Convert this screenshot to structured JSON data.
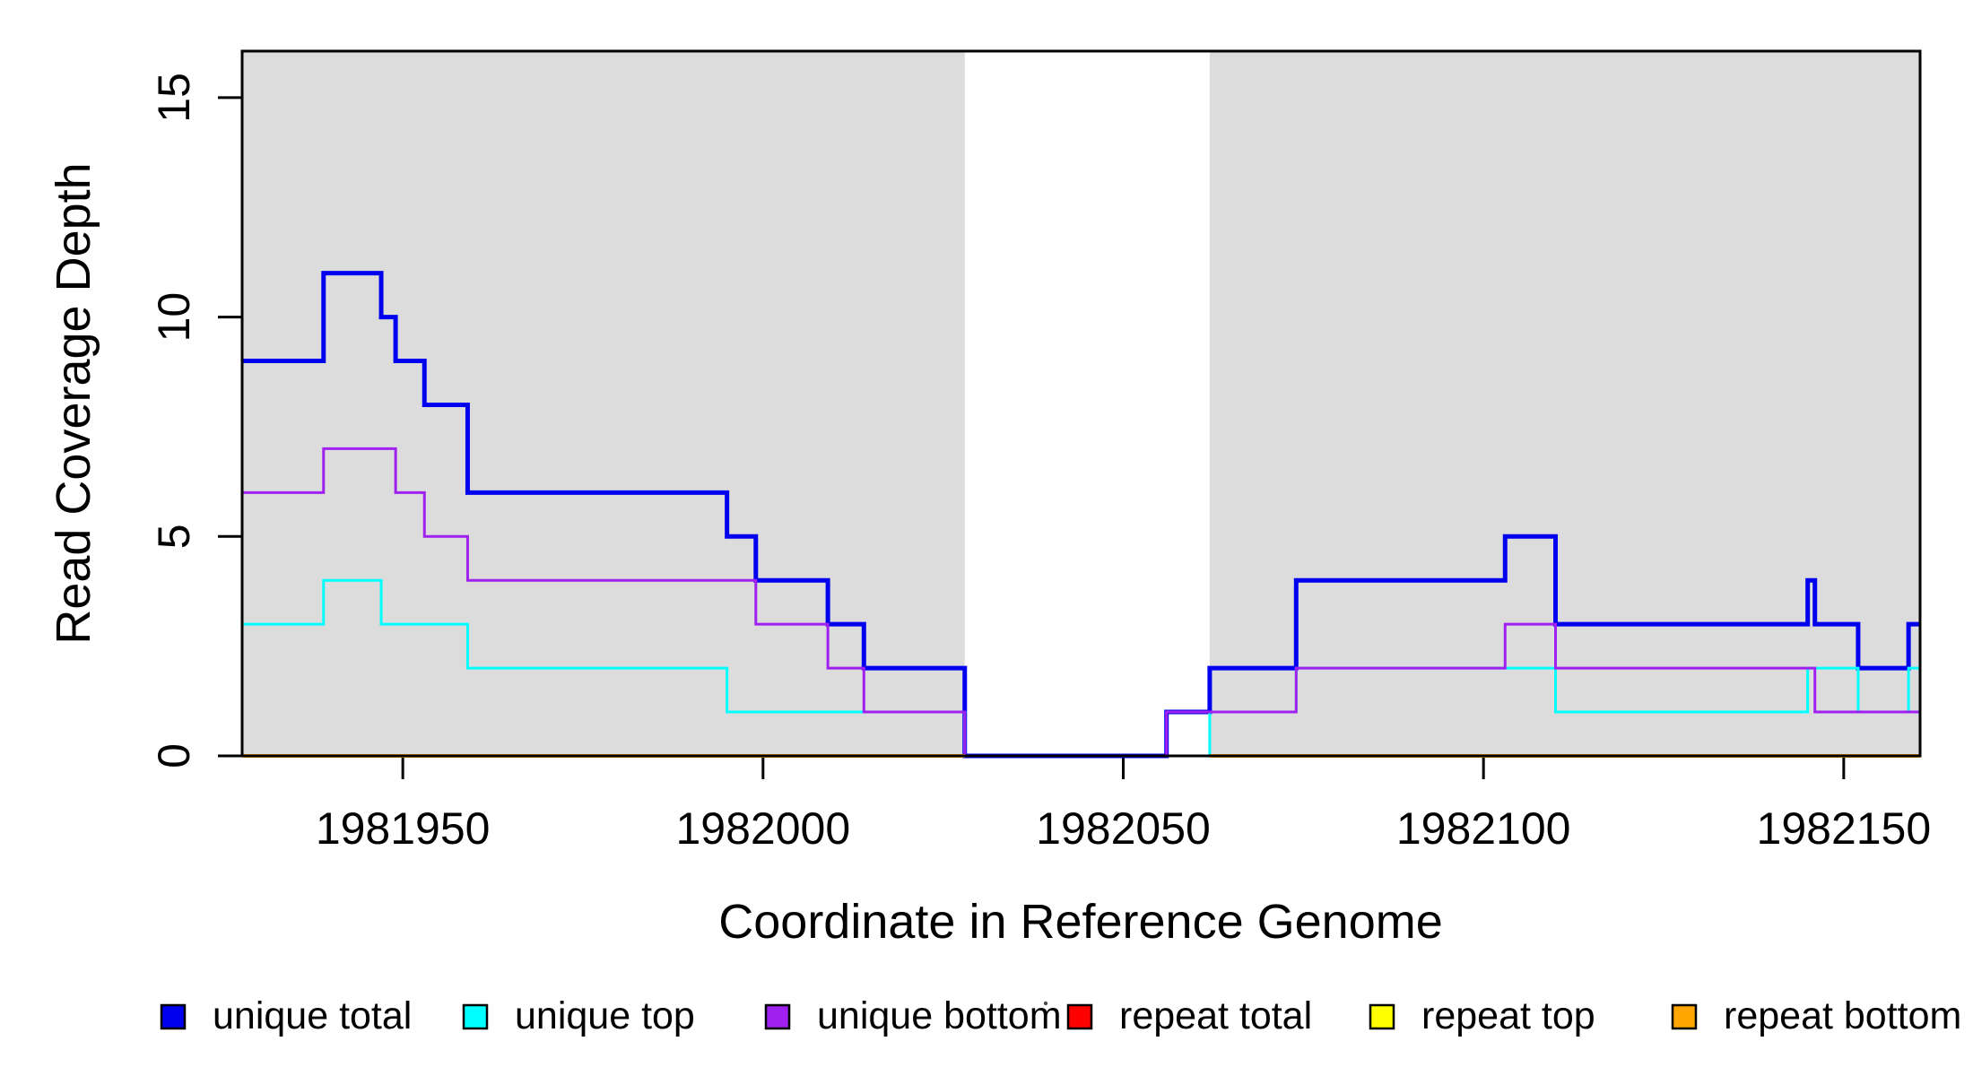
{
  "chart_data": {
    "type": "line",
    "subtype": "step-coverage",
    "title": "",
    "xlabel": "Coordinate in Reference Genome",
    "ylabel": "Read Coverage Depth",
    "xlim": [
      1981927.7,
      1982160.6
    ],
    "ylim": [
      0,
      16.06
    ],
    "xticks": [
      1981950,
      1982000,
      1982050,
      1982100,
      1982150
    ],
    "yticks": [
      0,
      5,
      10,
      15
    ],
    "grid": false,
    "shaded_regions": {
      "color": "#dcdcdc",
      "ranges": [
        [
          1981927.7,
          1982028
        ],
        [
          1982062,
          1982160.6
        ]
      ]
    },
    "series": [
      {
        "name": "unique total",
        "color": "#0000ee",
        "line_width": 5,
        "steps": [
          [
            1981927.7,
            9
          ],
          [
            1981939,
            11
          ],
          [
            1981947,
            10
          ],
          [
            1981949,
            9
          ],
          [
            1981953,
            8
          ],
          [
            1981959,
            6
          ],
          [
            1981995,
            5
          ],
          [
            1981999,
            4
          ],
          [
            1982009,
            3
          ],
          [
            1982014,
            2
          ],
          [
            1982028,
            0
          ],
          [
            1982056,
            1
          ],
          [
            1982062,
            2
          ],
          [
            1982074,
            4
          ],
          [
            1982103,
            5
          ],
          [
            1982110,
            3
          ],
          [
            1982145,
            4
          ],
          [
            1982146,
            3
          ],
          [
            1982152,
            2
          ],
          [
            1982159,
            3
          ]
        ],
        "end": 1982160.6
      },
      {
        "name": "unique top",
        "color": "#00ffff",
        "line_width": 3,
        "steps": [
          [
            1981927.7,
            3
          ],
          [
            1981939,
            4
          ],
          [
            1981947,
            3
          ],
          [
            1981959,
            2
          ],
          [
            1981995,
            1
          ],
          [
            1982028,
            0
          ],
          [
            1982062,
            1
          ],
          [
            1982074,
            2
          ],
          [
            1982110,
            1
          ],
          [
            1982145,
            2
          ],
          [
            1982152,
            1
          ],
          [
            1982159,
            2
          ]
        ],
        "end": 1982160.6
      },
      {
        "name": "unique bottom",
        "color": "#a020f0",
        "line_width": 3,
        "steps": [
          [
            1981927.7,
            6
          ],
          [
            1981939,
            7
          ],
          [
            1981949,
            6
          ],
          [
            1981953,
            5
          ],
          [
            1981959,
            4
          ],
          [
            1981999,
            3
          ],
          [
            1982009,
            2
          ],
          [
            1982014,
            1
          ],
          [
            1982028,
            0
          ],
          [
            1982056,
            1
          ],
          [
            1982074,
            2
          ],
          [
            1982103,
            3
          ],
          [
            1982110,
            2
          ],
          [
            1982146,
            1
          ]
        ],
        "end": 1982160.6
      },
      {
        "name": "repeat total",
        "color": "#ff0000",
        "line_width": 3,
        "value": 0,
        "segments": [
          [
            1981927.7,
            1982028
          ],
          [
            1982062,
            1982160.6
          ]
        ]
      },
      {
        "name": "repeat top",
        "color": "#ffff00",
        "line_width": 3,
        "value": 0,
        "segments": [
          [
            1981927.7,
            1982028
          ],
          [
            1982062,
            1982160.6
          ]
        ]
      },
      {
        "name": "repeat bottom",
        "color": "#ffa500",
        "line_width": 4,
        "value": 0,
        "segments": [
          [
            1981927.7,
            1982028
          ],
          [
            1982062,
            1982160.6
          ]
        ]
      }
    ],
    "legend": [
      {
        "label": "unique total",
        "color": "#0000ee"
      },
      {
        "label": "unique top",
        "color": "#00ffff"
      },
      {
        "label": "unique bottom",
        "color": "#a020f0"
      },
      {
        "label": "repeat total",
        "color": "#ff0000"
      },
      {
        "label": "repeat top",
        "color": "#ffff00"
      },
      {
        "label": "repeat bottom",
        "color": "#ffa500"
      }
    ],
    "legend_position": "bottom"
  }
}
